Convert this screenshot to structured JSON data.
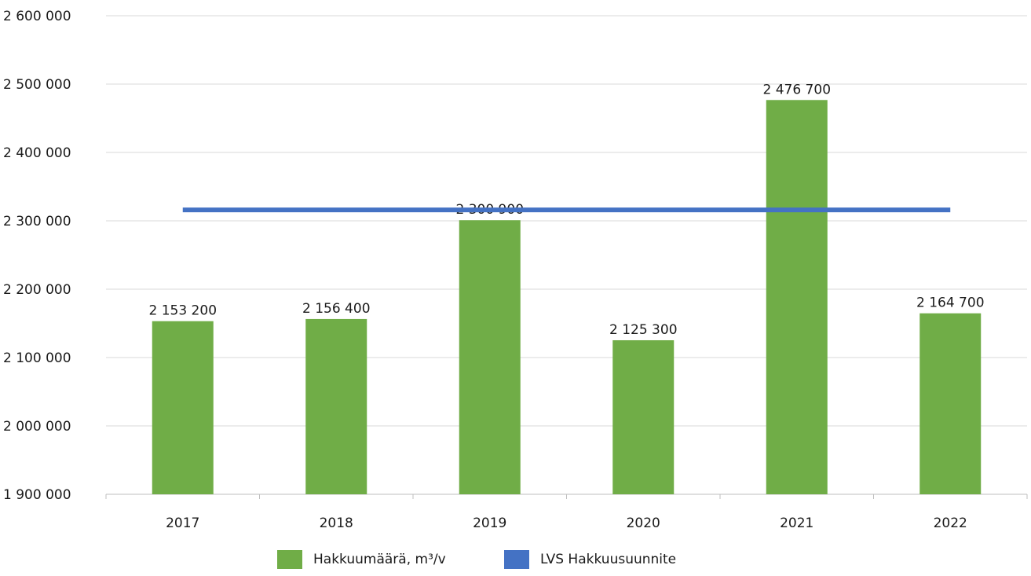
{
  "chart_data": {
    "type": "bar",
    "categories": [
      "2017",
      "2018",
      "2019",
      "2020",
      "2021",
      "2022"
    ],
    "series": [
      {
        "name": "Hakkuumäärä, m³/v",
        "type": "bar",
        "values": [
          2153200,
          2156400,
          2300900,
          2125300,
          2476700,
          2164700
        ],
        "labels": [
          "2 153 200",
          "2 156 400",
          "2 300 900",
          "2 125 300",
          "2 476 700",
          "2 164 700"
        ],
        "color": "#70ad47"
      },
      {
        "name": "LVS Hakkuusuunnite",
        "type": "line",
        "values": [
          2316000,
          2316000,
          2316000,
          2316000,
          2316000,
          2316000
        ],
        "color": "#4472c4"
      }
    ],
    "ylim": [
      1900000,
      2600000
    ],
    "yticks": [
      1900000,
      2000000,
      2100000,
      2200000,
      2300000,
      2400000,
      2500000,
      2600000
    ],
    "ytick_labels": [
      "1 900 000",
      "2 000 000",
      "2 100 000",
      "2 200 000",
      "2 300 000",
      "2 400 000",
      "2 500 000",
      "2 600 000"
    ],
    "grid": true,
    "legend_position": "bottom"
  }
}
